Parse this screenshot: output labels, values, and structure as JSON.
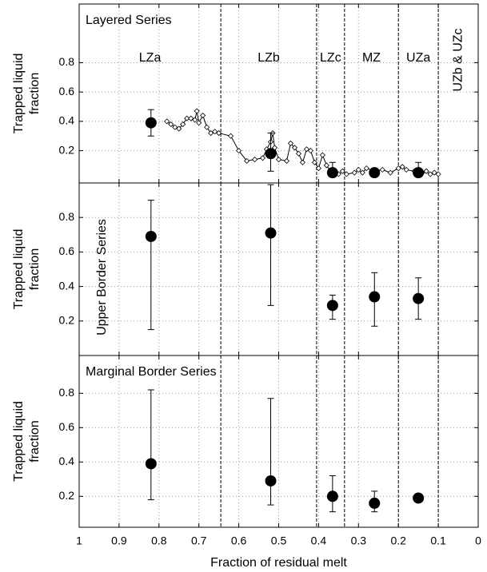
{
  "chart_data": [
    {
      "type": "scatter",
      "panel_label": "Layered Series",
      "ylabel": [
        "Trapped liquid",
        "fraction"
      ],
      "xlim": [
        1,
        0
      ],
      "ylim": [
        -0.02,
        1.2
      ],
      "yticks": [
        0.2,
        0.4,
        0.6,
        0.8
      ],
      "grid": true,
      "zone_boundaries": [
        0.645,
        0.405,
        0.335,
        0.2,
        0.1
      ],
      "zones": [
        "LZa",
        "LZb",
        "LZc",
        "MZ",
        "UZa",
        "UZb & UZc"
      ],
      "series": [
        {
          "type": "line",
          "marker": "diamond",
          "color": "#000000",
          "x": [
            0.78,
            0.77,
            0.76,
            0.75,
            0.74,
            0.73,
            0.72,
            0.71,
            0.705,
            0.7,
            0.69,
            0.68,
            0.67,
            0.66,
            0.65,
            0.62,
            0.6,
            0.58,
            0.56,
            0.54,
            0.53,
            0.52,
            0.515,
            0.51,
            0.5,
            0.48,
            0.47,
            0.46,
            0.45,
            0.44,
            0.43,
            0.42,
            0.41,
            0.4,
            0.39,
            0.38,
            0.37,
            0.35,
            0.34,
            0.33,
            0.31,
            0.3,
            0.29,
            0.28,
            0.26,
            0.24,
            0.22,
            0.2,
            0.19,
            0.18,
            0.16,
            0.14,
            0.13,
            0.12,
            0.11,
            0.1
          ],
          "values": [
            0.4,
            0.38,
            0.36,
            0.35,
            0.38,
            0.42,
            0.42,
            0.41,
            0.47,
            0.39,
            0.44,
            0.36,
            0.32,
            0.33,
            0.32,
            0.3,
            0.2,
            0.13,
            0.14,
            0.15,
            0.21,
            0.26,
            0.32,
            0.22,
            0.14,
            0.13,
            0.25,
            0.22,
            0.18,
            0.12,
            0.21,
            0.2,
            0.12,
            0.08,
            0.17,
            0.1,
            0.06,
            0.04,
            0.06,
            0.04,
            0.05,
            0.07,
            0.05,
            0.08,
            0.06,
            0.07,
            0.05,
            0.08,
            0.09,
            0.07,
            0.06,
            0.05,
            0.06,
            0.04,
            0.05,
            0.04
          ]
        },
        {
          "type": "errorbar",
          "marker": "circle",
          "color": "#000000",
          "x": [
            0.82,
            0.52,
            0.365,
            0.26,
            0.15
          ],
          "values": [
            0.39,
            0.18,
            0.05,
            0.05,
            0.05
          ],
          "lower": [
            0.3,
            0.06,
            0.02,
            null,
            0.03
          ],
          "upper": [
            0.48,
            0.32,
            0.12,
            null,
            0.12
          ]
        }
      ]
    },
    {
      "type": "scatter",
      "panel_label": "Upper Border Series",
      "panel_label_rotated": true,
      "ylabel": [
        "Trapped liquid",
        "fraction"
      ],
      "xlim": [
        1,
        0
      ],
      "ylim": [
        0,
        1
      ],
      "yticks": [
        0.2,
        0.4,
        0.6,
        0.8
      ],
      "grid": true,
      "series": [
        {
          "type": "errorbar",
          "marker": "circle",
          "color": "#000000",
          "x": [
            0.82,
            0.52,
            0.365,
            0.26,
            0.15
          ],
          "values": [
            0.69,
            0.71,
            0.29,
            0.34,
            0.33
          ],
          "lower": [
            0.15,
            0.29,
            0.21,
            0.17,
            0.21
          ],
          "upper": [
            0.9,
            0.99,
            0.35,
            0.48,
            0.45
          ]
        }
      ]
    },
    {
      "type": "scatter",
      "panel_label": "Marginal Border Series",
      "ylabel": [
        "Trapped liquid",
        "fraction"
      ],
      "xlabel": "Fraction of residual melt",
      "xlim": [
        1,
        0
      ],
      "ylim": [
        0.02,
        1.02
      ],
      "yticks": [
        0.2,
        0.4,
        0.6,
        0.8
      ],
      "grid": true,
      "xticks": [
        1,
        0.9,
        0.8,
        0.7,
        0.6,
        0.5,
        0.4,
        0.3,
        0.2,
        0.1,
        0
      ],
      "series": [
        {
          "type": "errorbar",
          "marker": "circle",
          "color": "#000000",
          "x": [
            0.82,
            0.52,
            0.365,
            0.26,
            0.15
          ],
          "values": [
            0.39,
            0.29,
            0.2,
            0.16,
            0.19
          ],
          "lower": [
            0.18,
            0.15,
            0.11,
            0.11,
            null
          ],
          "upper": [
            0.82,
            0.77,
            0.32,
            0.23,
            null
          ]
        }
      ]
    }
  ]
}
